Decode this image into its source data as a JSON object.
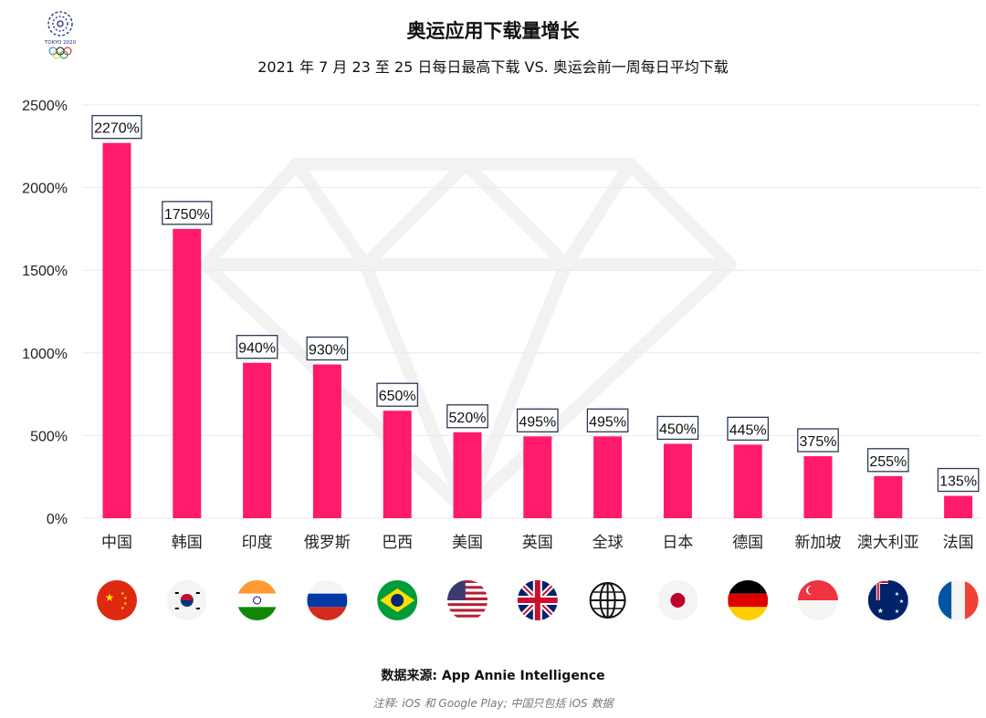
{
  "logo": {
    "text": "TOKYO 2020",
    "icon": "tokyo-2020-emblem-icon"
  },
  "chart_data": {
    "type": "bar",
    "title": "奥运应用下载量增长",
    "subtitle": "2021 年 7 月 23 至 25 日每日最高下载 VS. 奥运会前一周每日平均下载",
    "xlabel": "",
    "ylabel": "",
    "ylim": [
      0,
      2500
    ],
    "yticks": [
      "0%",
      "500%",
      "1000%",
      "1500%",
      "2000%",
      "2500%"
    ],
    "ytick_values": [
      0,
      500,
      1000,
      1500,
      2000,
      2500
    ],
    "grid": true,
    "categories": [
      "中国",
      "韩国",
      "印度",
      "俄罗斯",
      "巴西",
      "美国",
      "英国",
      "全球",
      "日本",
      "德国",
      "新加坡",
      "澳大利亚",
      "法国"
    ],
    "values": [
      2270,
      1750,
      940,
      930,
      650,
      520,
      495,
      495,
      450,
      445,
      375,
      255,
      135
    ],
    "value_labels": [
      "2270%",
      "1750%",
      "940%",
      "930%",
      "650%",
      "520%",
      "495%",
      "495%",
      "450%",
      "445%",
      "375%",
      "255%",
      "135%"
    ],
    "flags": [
      "china-flag-icon",
      "south-korea-flag-icon",
      "india-flag-icon",
      "russia-flag-icon",
      "brazil-flag-icon",
      "usa-flag-icon",
      "uk-flag-icon",
      "globe-icon",
      "japan-flag-icon",
      "germany-flag-icon",
      "singapore-flag-icon",
      "australia-flag-icon",
      "france-flag-icon"
    ],
    "bar_color": "#ff1a6c"
  },
  "footer": {
    "source": "数据来源: App Annie Intelligence",
    "note": "注释: iOS 和 Google Play; 中国只包括 iOS 数据"
  }
}
